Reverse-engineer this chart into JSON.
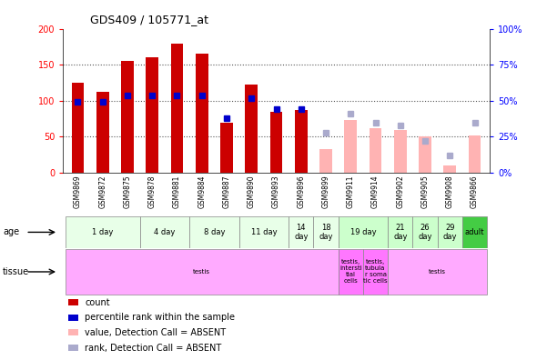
{
  "title": "GDS409 / 105771_at",
  "samples": [
    "GSM9869",
    "GSM9872",
    "GSM9875",
    "GSM9878",
    "GSM9881",
    "GSM9884",
    "GSM9887",
    "GSM9890",
    "GSM9893",
    "GSM9896",
    "GSM9899",
    "GSM9911",
    "GSM9914",
    "GSM9902",
    "GSM9905",
    "GSM9908",
    "GSM9866"
  ],
  "count_values": [
    125,
    113,
    155,
    160,
    180,
    165,
    70,
    122,
    85,
    87,
    null,
    null,
    null,
    null,
    null,
    null,
    null
  ],
  "rank_values": [
    49,
    49,
    54,
    54,
    54,
    54,
    38,
    52,
    44,
    44,
    null,
    null,
    null,
    null,
    null,
    null,
    null
  ],
  "absent_count_values": [
    null,
    null,
    null,
    null,
    null,
    null,
    null,
    null,
    null,
    null,
    33,
    73,
    62,
    60,
    50,
    10,
    52
  ],
  "absent_rank_values": [
    null,
    null,
    null,
    null,
    null,
    null,
    null,
    null,
    null,
    null,
    28,
    41,
    35,
    33,
    22,
    12,
    35
  ],
  "count_color": "#cc0000",
  "rank_color": "#0000cc",
  "absent_count_color": "#ffb3b3",
  "absent_rank_color": "#aaaacc",
  "ylim_left": [
    0,
    200
  ],
  "ylim_right": [
    0,
    100
  ],
  "yticks_left": [
    0,
    50,
    100,
    150,
    200
  ],
  "yticks_right": [
    0,
    25,
    50,
    75,
    100
  ],
  "ytick_labels_right": [
    "0%",
    "25%",
    "50%",
    "75%",
    "100%"
  ],
  "age_groups": [
    {
      "label": "1 day",
      "start": 0,
      "end": 3,
      "color": "#e8ffe8"
    },
    {
      "label": "4 day",
      "start": 3,
      "end": 5,
      "color": "#e8ffe8"
    },
    {
      "label": "8 day",
      "start": 5,
      "end": 7,
      "color": "#e8ffe8"
    },
    {
      "label": "11 day",
      "start": 7,
      "end": 9,
      "color": "#e8ffe8"
    },
    {
      "label": "14\nday",
      "start": 9,
      "end": 10,
      "color": "#e8ffe8"
    },
    {
      "label": "18\nday",
      "start": 10,
      "end": 11,
      "color": "#e8ffe8"
    },
    {
      "label": "19 day",
      "start": 11,
      "end": 13,
      "color": "#ccffcc"
    },
    {
      "label": "21\nday",
      "start": 13,
      "end": 14,
      "color": "#ccffcc"
    },
    {
      "label": "26\nday",
      "start": 14,
      "end": 15,
      "color": "#ccffcc"
    },
    {
      "label": "29\nday",
      "start": 15,
      "end": 16,
      "color": "#ccffcc"
    },
    {
      "label": "adult",
      "start": 16,
      "end": 17,
      "color": "#44cc44"
    }
  ],
  "tissue_groups": [
    {
      "label": "testis",
      "start": 0,
      "end": 11,
      "color": "#ffaaff"
    },
    {
      "label": "testis,\nintersti\ntial\ncells",
      "start": 11,
      "end": 12,
      "color": "#ff77ff"
    },
    {
      "label": "testis,\ntubula\nr soma\ntic cells",
      "start": 12,
      "end": 13,
      "color": "#ff77ff"
    },
    {
      "label": "testis",
      "start": 13,
      "end": 17,
      "color": "#ffaaff"
    }
  ],
  "legend_items": [
    {
      "label": "count",
      "color": "#cc0000",
      "marker": "s"
    },
    {
      "label": "percentile rank within the sample",
      "color": "#0000cc",
      "marker": "s"
    },
    {
      "label": "value, Detection Call = ABSENT",
      "color": "#ffb3b3",
      "marker": "s"
    },
    {
      "label": "rank, Detection Call = ABSENT",
      "color": "#aaaacc",
      "marker": "s"
    }
  ],
  "bg_color": "#ffffff",
  "xaxis_bg": "#d8d8d8"
}
